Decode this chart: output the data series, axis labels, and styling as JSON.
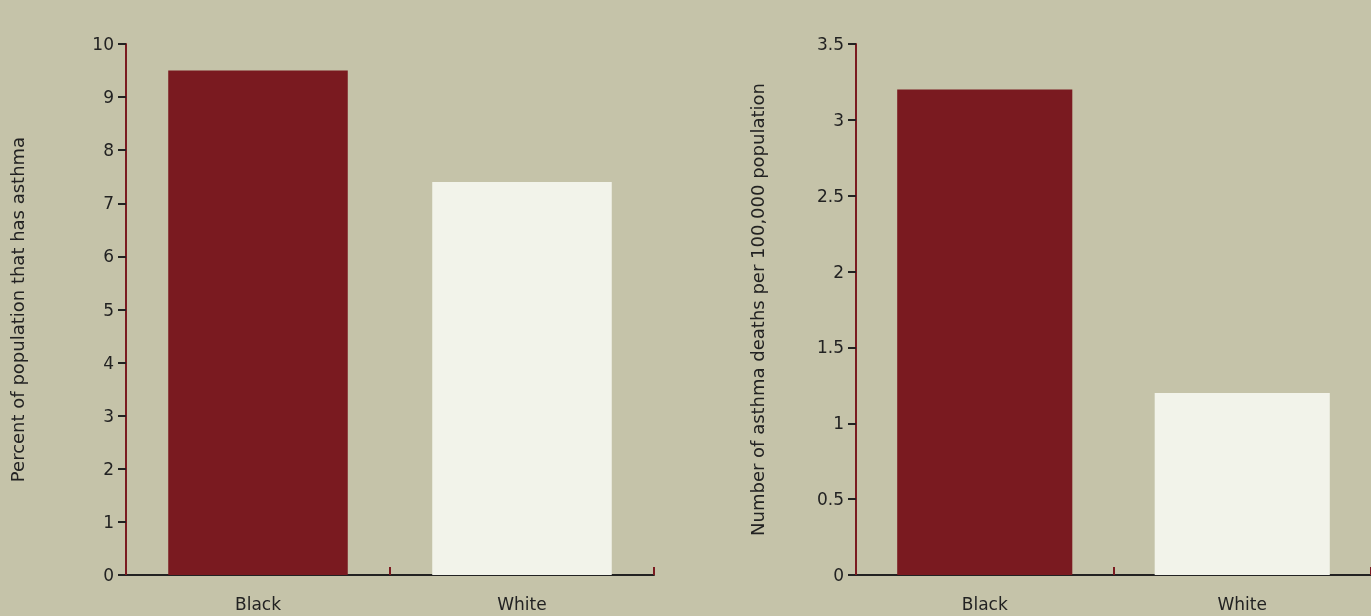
{
  "chart_data": [
    {
      "type": "bar",
      "ylabel": "Percent of population that has asthma",
      "categories": [
        "Black",
        "White"
      ],
      "values": [
        9.5,
        7.4
      ],
      "colors": [
        "#7a1a20",
        "#f2f3ea"
      ],
      "ylim": [
        0,
        10
      ],
      "yticks": [
        0,
        1,
        2,
        3,
        4,
        5,
        6,
        7,
        8,
        9,
        10
      ],
      "grid": false
    },
    {
      "type": "bar",
      "ylabel": "Number of asthma deaths per 100,000 population",
      "categories": [
        "Black",
        "White"
      ],
      "values": [
        3.2,
        1.2
      ],
      "colors": [
        "#7a1a20",
        "#f2f3ea"
      ],
      "ylim": [
        0,
        3.5
      ],
      "yticks": [
        0,
        0.5,
        1,
        1.5,
        2,
        2.5,
        3,
        3.5
      ],
      "grid": false
    }
  ]
}
